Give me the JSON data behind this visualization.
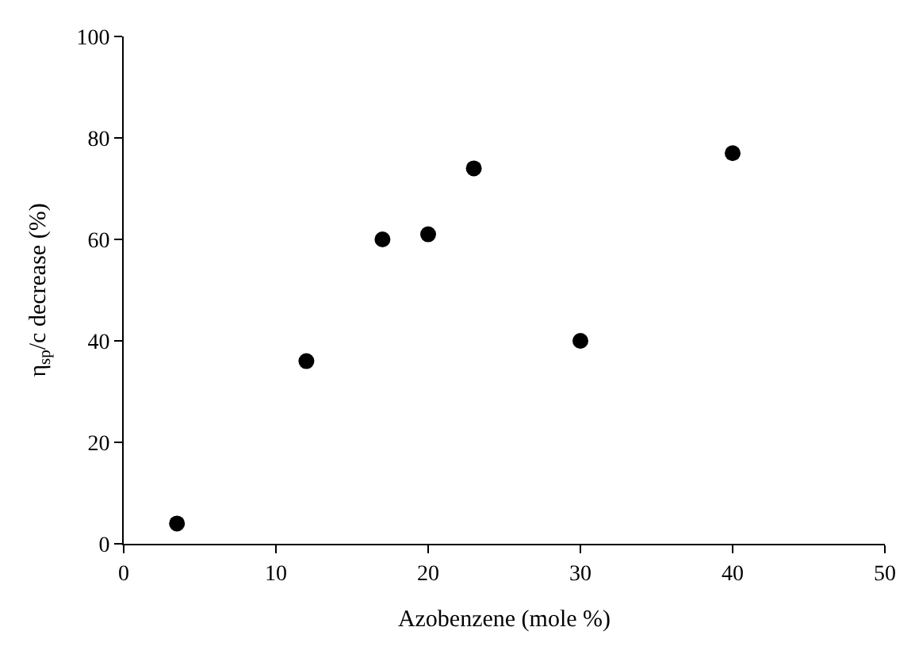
{
  "chart_data": {
    "type": "scatter",
    "xlabel": "Azobenzene (mole %)",
    "ylabel": "η$_{sp}$/c decrease (%)",
    "x": [
      3.5,
      12,
      17,
      20,
      23,
      30,
      40
    ],
    "series": [
      {
        "color": "#000000",
        "values": [
          4,
          36,
          60,
          61,
          74,
          40,
          77
        ]
      }
    ],
    "xlim": [
      0,
      50
    ],
    "xticks": [
      0,
      10,
      20,
      30,
      40,
      50
    ],
    "ylim": [
      0,
      100
    ],
    "yticks": [
      0,
      20,
      40,
      60,
      80,
      100
    ],
    "marker": "circle"
  }
}
